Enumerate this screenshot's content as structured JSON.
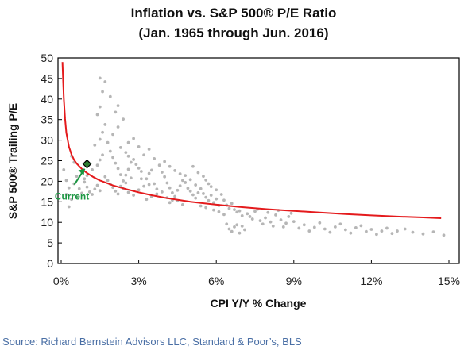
{
  "chart_data": {
    "type": "scatter",
    "title": "Inflation vs. S&P 500® P/E Ratio",
    "subtitle": "(Jan. 1965 through Jun. 2016)",
    "xlabel": "CPI Y/Y % Change",
    "ylabel": "S&P 500® Trailing P/E",
    "xlim": [
      0,
      15
    ],
    "ylim": [
      0,
      50
    ],
    "x_ticks": [
      0,
      3,
      6,
      9,
      12,
      15
    ],
    "x_tick_labels": [
      "0%",
      "3%",
      "6%",
      "9%",
      "12%",
      "15%"
    ],
    "y_ticks": [
      0,
      5,
      10,
      15,
      20,
      25,
      30,
      35,
      40,
      45,
      50
    ],
    "y_tick_labels": [
      "0",
      "5",
      "10",
      "15",
      "20",
      "25",
      "30",
      "35",
      "40",
      "45",
      "50"
    ],
    "grid": false,
    "legend": "none",
    "series": [
      {
        "kind": "scatter",
        "color": "#a9a9a9",
        "points": [
          [
            0.1,
            22.8
          ],
          [
            0.2,
            20.2
          ],
          [
            0.3,
            18.4
          ],
          [
            0.2,
            16.8
          ],
          [
            0.4,
            15.6
          ],
          [
            0.3,
            13.8
          ],
          [
            0.5,
            19.4
          ],
          [
            0.6,
            21.2
          ],
          [
            0.5,
            24.6
          ],
          [
            0.4,
            26.1
          ],
          [
            0.7,
            18.2
          ],
          [
            0.8,
            17.1
          ],
          [
            0.6,
            16.2
          ],
          [
            0.9,
            19.8
          ],
          [
            1.0,
            18.6
          ],
          [
            1.1,
            17.4
          ],
          [
            1.2,
            16.8
          ],
          [
            1.3,
            18.1
          ],
          [
            1.4,
            19.0
          ],
          [
            1.5,
            17.7
          ],
          [
            1.0,
            21.4
          ],
          [
            1.2,
            22.8
          ],
          [
            1.4,
            23.9
          ],
          [
            1.5,
            25.2
          ],
          [
            1.6,
            26.4
          ],
          [
            1.3,
            28.8
          ],
          [
            1.5,
            30.2
          ],
          [
            1.6,
            31.9
          ],
          [
            1.7,
            33.8
          ],
          [
            1.4,
            36.2
          ],
          [
            1.5,
            38.1
          ],
          [
            1.6,
            41.8
          ],
          [
            1.5,
            45.1
          ],
          [
            1.7,
            44.2
          ],
          [
            1.8,
            29.4
          ],
          [
            1.9,
            27.3
          ],
          [
            2.0,
            25.8
          ],
          [
            2.1,
            24.4
          ],
          [
            2.2,
            23.1
          ],
          [
            2.3,
            21.6
          ],
          [
            1.8,
            20.2
          ],
          [
            1.9,
            19.3
          ],
          [
            2.0,
            18.5
          ],
          [
            2.1,
            17.6
          ],
          [
            2.2,
            16.9
          ],
          [
            2.3,
            18.8
          ],
          [
            2.4,
            20.1
          ],
          [
            2.5,
            21.5
          ],
          [
            2.6,
            22.9
          ],
          [
            2.7,
            24.6
          ],
          [
            2.0,
            31.4
          ],
          [
            2.2,
            33.2
          ],
          [
            2.4,
            35.1
          ],
          [
            2.3,
            28.2
          ],
          [
            2.5,
            27.0
          ],
          [
            2.6,
            26.1
          ],
          [
            2.8,
            25.3
          ],
          [
            2.9,
            24.1
          ],
          [
            3.0,
            23.2
          ],
          [
            3.1,
            22.4
          ],
          [
            2.4,
            18.2
          ],
          [
            2.6,
            17.3
          ],
          [
            2.8,
            16.6
          ],
          [
            3.0,
            17.9
          ],
          [
            3.2,
            18.8
          ],
          [
            3.3,
            20.6
          ],
          [
            3.4,
            21.9
          ],
          [
            3.5,
            22.7
          ],
          [
            3.6,
            19.4
          ],
          [
            3.7,
            18.1
          ],
          [
            3.2,
            26.4
          ],
          [
            3.4,
            27.8
          ],
          [
            3.6,
            25.5
          ],
          [
            3.8,
            23.9
          ],
          [
            3.9,
            22.2
          ],
          [
            4.0,
            21.1
          ],
          [
            4.1,
            19.6
          ],
          [
            4.2,
            18.4
          ],
          [
            4.3,
            17.2
          ],
          [
            4.4,
            16.3
          ],
          [
            3.3,
            15.6
          ],
          [
            3.5,
            16.2
          ],
          [
            3.7,
            16.9
          ],
          [
            3.9,
            17.4
          ],
          [
            4.1,
            16.0
          ],
          [
            4.3,
            15.4
          ],
          [
            4.5,
            17.8
          ],
          [
            4.6,
            18.9
          ],
          [
            4.7,
            20.2
          ],
          [
            4.8,
            21.4
          ],
          [
            4.0,
            24.8
          ],
          [
            4.2,
            23.6
          ],
          [
            4.4,
            22.6
          ],
          [
            4.6,
            21.8
          ],
          [
            4.8,
            19.7
          ],
          [
            4.9,
            18.3
          ],
          [
            5.0,
            17.6
          ],
          [
            5.1,
            16.7
          ],
          [
            5.2,
            15.9
          ],
          [
            5.3,
            17.2
          ],
          [
            5.0,
            20.4
          ],
          [
            5.2,
            19.1
          ],
          [
            5.4,
            18.2
          ],
          [
            5.5,
            17.0
          ],
          [
            5.6,
            16.1
          ],
          [
            5.7,
            15.3
          ],
          [
            5.8,
            16.6
          ],
          [
            5.9,
            14.8
          ],
          [
            6.0,
            15.7
          ],
          [
            6.1,
            14.1
          ],
          [
            5.1,
            23.6
          ],
          [
            5.3,
            22.1
          ],
          [
            5.5,
            21.2
          ],
          [
            5.6,
            20.3
          ],
          [
            5.7,
            19.4
          ],
          [
            5.8,
            18.7
          ],
          [
            6.0,
            17.9
          ],
          [
            6.2,
            16.8
          ],
          [
            6.3,
            15.4
          ],
          [
            6.4,
            14.2
          ],
          [
            6.5,
            13.4
          ],
          [
            6.6,
            14.6
          ],
          [
            6.7,
            13.1
          ],
          [
            6.8,
            12.5
          ],
          [
            6.4,
            9.6
          ],
          [
            6.5,
            8.4
          ],
          [
            6.6,
            7.8
          ],
          [
            6.7,
            8.9
          ],
          [
            6.8,
            9.4
          ],
          [
            6.9,
            7.4
          ],
          [
            7.0,
            9.1
          ],
          [
            7.1,
            8.2
          ],
          [
            7.2,
            12.1
          ],
          [
            7.3,
            11.4
          ],
          [
            7.4,
            10.8
          ],
          [
            7.5,
            12.7
          ],
          [
            7.6,
            13.2
          ],
          [
            7.7,
            10.4
          ],
          [
            7.8,
            9.6
          ],
          [
            7.9,
            11.1
          ],
          [
            8.0,
            12.4
          ],
          [
            8.1,
            10.1
          ],
          [
            8.2,
            9.1
          ],
          [
            8.3,
            11.8
          ],
          [
            8.4,
            12.9
          ],
          [
            8.5,
            10.6
          ],
          [
            8.6,
            8.9
          ],
          [
            8.7,
            9.8
          ],
          [
            8.8,
            11.4
          ],
          [
            8.9,
            12.2
          ],
          [
            9.0,
            10.2
          ],
          [
            9.2,
            8.6
          ],
          [
            9.4,
            9.4
          ],
          [
            9.6,
            7.9
          ],
          [
            9.8,
            8.8
          ],
          [
            10.0,
            9.9
          ],
          [
            10.2,
            8.4
          ],
          [
            10.4,
            7.6
          ],
          [
            10.6,
            8.9
          ],
          [
            10.8,
            9.6
          ],
          [
            11.0,
            8.2
          ],
          [
            11.2,
            7.4
          ],
          [
            11.4,
            8.7
          ],
          [
            11.6,
            9.2
          ],
          [
            11.8,
            7.8
          ],
          [
            12.0,
            8.3
          ],
          [
            12.2,
            7.1
          ],
          [
            12.4,
            7.9
          ],
          [
            12.6,
            8.6
          ],
          [
            12.8,
            7.3
          ],
          [
            13.0,
            7.9
          ],
          [
            13.3,
            8.4
          ],
          [
            13.6,
            7.6
          ],
          [
            14.0,
            7.2
          ],
          [
            14.4,
            7.7
          ],
          [
            14.8,
            6.9
          ],
          [
            2.6,
            29.4
          ],
          [
            2.8,
            30.4
          ],
          [
            3.0,
            28.4
          ],
          [
            2.2,
            38.4
          ],
          [
            1.9,
            40.6
          ],
          [
            2.1,
            36.8
          ],
          [
            3.1,
            20.6
          ],
          [
            3.4,
            19.2
          ],
          [
            2.5,
            19.6
          ],
          [
            2.7,
            20.8
          ],
          [
            1.1,
            24.2
          ],
          [
            0.8,
            22.2
          ],
          [
            0.9,
            20.6
          ],
          [
            1.7,
            21.1
          ],
          [
            4.2,
            14.8
          ],
          [
            4.5,
            15.2
          ],
          [
            4.7,
            14.3
          ],
          [
            5.4,
            14.0
          ],
          [
            5.6,
            13.6
          ],
          [
            6.1,
            12.6
          ],
          [
            6.3,
            11.9
          ],
          [
            7.0,
            11.6
          ],
          [
            6.9,
            12.8
          ],
          [
            5.9,
            13.0
          ]
        ]
      },
      {
        "kind": "curve",
        "name": "fit",
        "color": "#e41a1c",
        "x": [
          0.05,
          0.1,
          0.15,
          0.2,
          0.3,
          0.4,
          0.5,
          0.6,
          0.8,
          1.0,
          1.25,
          1.5,
          2.0,
          2.5,
          3.0,
          3.5,
          4.0,
          5.0,
          6.0,
          7.0,
          8.0,
          9.0,
          10.0,
          11.0,
          12.0,
          13.0,
          14.0,
          14.7
        ],
        "y": [
          49.0,
          40.2,
          35.2,
          31.8,
          28.4,
          26.5,
          25.2,
          24.3,
          23.0,
          22.0,
          21.0,
          20.2,
          19.0,
          18.1,
          17.3,
          16.6,
          16.0,
          15.0,
          14.3,
          13.7,
          13.2,
          12.8,
          12.4,
          12.0,
          11.7,
          11.4,
          11.2,
          11.0
        ]
      }
    ],
    "highlight": {
      "label": "Current",
      "x": 1.0,
      "y": 24.2,
      "marker_color": "#2e7d32",
      "label_color": "#1a9641"
    }
  },
  "source": "Source: Richard Bernstein Advisors LLC, Standard & Poor’s, BLS",
  "colors": {
    "source_text": "#4a6fa5",
    "axis": "#000000",
    "background": "#ffffff"
  }
}
